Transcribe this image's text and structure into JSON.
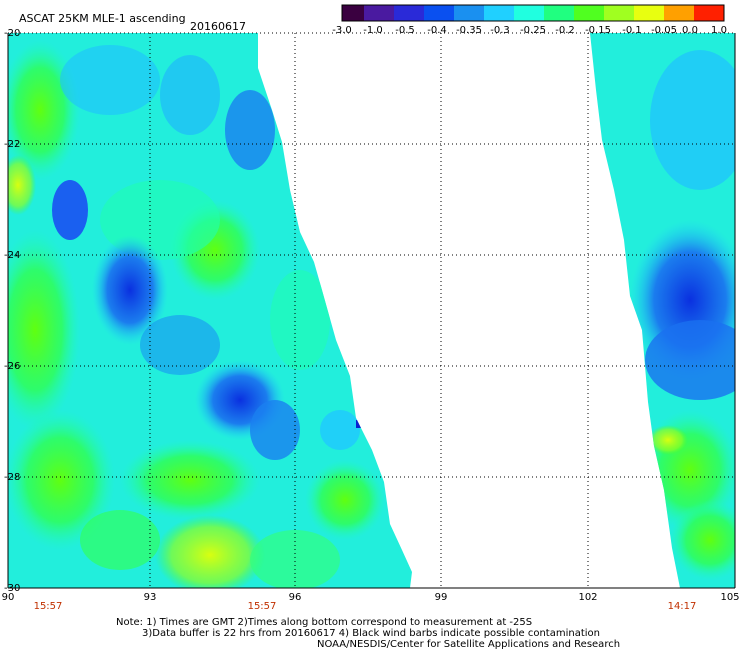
{
  "header": {
    "title": "ASCAT 25KM MLE-1 ascending",
    "date": "20160617"
  },
  "colorbar": {
    "labels": [
      "-3.0",
      "-1.0",
      "-0.5",
      "-0.4",
      "-0.35",
      "-0.3",
      "-0.25",
      "-0.2",
      "-0.15",
      "-0.1",
      "-0.05",
      "0.0",
      "1.0"
    ],
    "colors": [
      "#3a0040",
      "#4a1aa0",
      "#2a2ad8",
      "#0a50f0",
      "#1a90f0",
      "#20d0ff",
      "#20ffe0",
      "#20ff80",
      "#50ff20",
      "#a0ff20",
      "#e8ff10",
      "#ffa000",
      "#ff2000"
    ]
  },
  "map": {
    "lat_labels": [
      "-20",
      "-22",
      "-24",
      "-26",
      "-28",
      "-30"
    ],
    "lon_labels": [
      "90",
      "93",
      "96",
      "99",
      "102",
      "105"
    ],
    "time_labels": [
      "15:57",
      "15:57",
      "14:17"
    ],
    "time_color": "#c03000"
  },
  "notes": {
    "line1": "Note: 1) Times are GMT 2)Times along bottom correspond to measurement at -25S",
    "line2": "3)Data buffer is 22 hrs from 20160617 4) Black wind barbs indicate possible contamination",
    "line3": "NOAA/NESDIS/Center for Satellite Applications and Research"
  }
}
